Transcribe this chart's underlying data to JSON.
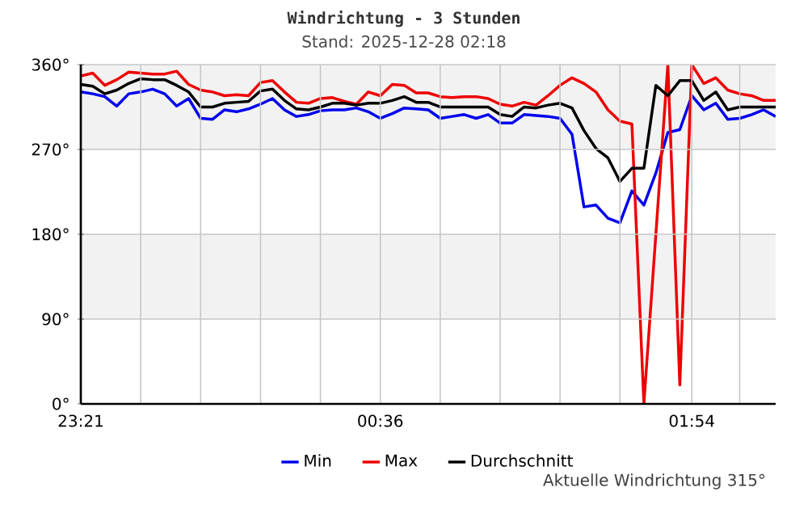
{
  "chart_data": {
    "type": "line",
    "title": "Windrichtung - 3 Stunden",
    "subtitle": "Stand: 2025-12-28 02:18",
    "annotations": [
      "Aktuelle Windrichtung 315°"
    ],
    "x": [
      "2025-12-27T23:21",
      "2025-12-27T23:24",
      "2025-12-27T23:27",
      "2025-12-27T23:30",
      "2025-12-27T23:33",
      "2025-12-27T23:36",
      "2025-12-27T23:39",
      "2025-12-27T23:42",
      "2025-12-27T23:45",
      "2025-12-27T23:48",
      "2025-12-27T23:51",
      "2025-12-27T23:54",
      "2025-12-27T23:57",
      "2025-12-28T00:00",
      "2025-12-28T00:03",
      "2025-12-28T00:06",
      "2025-12-28T00:09",
      "2025-12-28T00:12",
      "2025-12-28T00:15",
      "2025-12-28T00:18",
      "2025-12-28T00:21",
      "2025-12-28T00:24",
      "2025-12-28T00:27",
      "2025-12-28T00:30",
      "2025-12-28T00:33",
      "2025-12-28T00:36",
      "2025-12-28T00:39",
      "2025-12-28T00:42",
      "2025-12-28T00:45",
      "2025-12-28T00:48",
      "2025-12-28T00:51",
      "2025-12-28T00:54",
      "2025-12-28T00:57",
      "2025-12-28T01:00",
      "2025-12-28T01:03",
      "2025-12-28T01:06",
      "2025-12-28T01:09",
      "2025-12-28T01:12",
      "2025-12-28T01:15",
      "2025-12-28T01:18",
      "2025-12-28T01:21",
      "2025-12-28T01:24",
      "2025-12-28T01:27",
      "2025-12-28T01:30",
      "2025-12-28T01:33",
      "2025-12-28T01:36",
      "2025-12-28T01:39",
      "2025-12-28T01:42",
      "2025-12-28T01:45",
      "2025-12-28T01:48",
      "2025-12-28T01:51",
      "2025-12-28T01:54",
      "2025-12-28T01:57",
      "2025-12-28T02:00",
      "2025-12-28T02:03",
      "2025-12-28T02:06",
      "2025-12-28T02:09",
      "2025-12-28T02:12",
      "2025-12-28T02:15"
    ],
    "xlim": [
      "2025-12-27T23:21",
      "2025-12-28T02:15"
    ],
    "xticks": [
      {
        "value": "2025-12-27T23:21",
        "label": "23:21"
      },
      {
        "value": "2025-12-27T23:36",
        "label": null
      },
      {
        "value": "2025-12-27T23:51",
        "label": null
      },
      {
        "value": "2025-12-28T00:06",
        "label": null
      },
      {
        "value": "2025-12-28T00:21",
        "label": null
      },
      {
        "value": "2025-12-28T00:36",
        "label": "00:36"
      },
      {
        "value": "2025-12-28T00:51",
        "label": null
      },
      {
        "value": "2025-12-28T01:06",
        "label": null
      },
      {
        "value": "2025-12-28T01:21",
        "label": null
      },
      {
        "value": "2025-12-28T01:36",
        "label": null
      },
      {
        "value": "2025-12-28T01:54",
        "label": "01:54"
      },
      {
        "value": "2025-12-28T02:06",
        "label": null
      }
    ],
    "ylim": [
      0,
      360
    ],
    "yticks": [
      {
        "value": 0,
        "label": "0°"
      },
      {
        "value": 90,
        "label": "90°"
      },
      {
        "value": 180,
        "label": "180°"
      },
      {
        "value": 270,
        "label": "270°"
      },
      {
        "value": 360,
        "label": "360°"
      }
    ],
    "bands": [
      {
        "axis": "y",
        "from": 90,
        "to": 180,
        "color": "#f2f2f2"
      },
      {
        "axis": "y",
        "from": 270,
        "to": 360,
        "color": "#f2f2f2"
      }
    ],
    "grid": true,
    "legend": "bottom",
    "marker": "none",
    "line_style": "solid",
    "series": [
      {
        "name": "Min",
        "color": "#0000ee",
        "values": [
          331,
          329,
          326,
          316,
          329,
          331,
          334,
          329,
          316,
          324,
          303,
          302,
          312,
          310,
          313,
          318,
          324,
          312,
          305,
          307,
          311,
          312,
          312,
          314,
          310,
          303,
          308,
          314,
          313,
          312,
          303,
          305,
          307,
          303,
          307,
          298,
          298,
          307,
          306,
          305,
          303,
          286,
          209,
          211,
          197,
          192,
          226,
          211,
          245,
          288,
          291,
          327,
          312,
          319,
          302,
          303,
          307,
          312,
          305
        ]
      },
      {
        "name": "Max",
        "color": "#ee0000",
        "x": [
          "2025-12-27T23:21",
          "2025-12-27T23:24",
          "2025-12-27T23:27",
          "2025-12-27T23:30",
          "2025-12-27T23:33",
          "2025-12-27T23:36",
          "2025-12-27T23:39",
          "2025-12-27T23:42",
          "2025-12-27T23:45",
          "2025-12-27T23:48",
          "2025-12-27T23:51",
          "2025-12-27T23:54",
          "2025-12-27T23:57",
          "2025-12-28T00:00",
          "2025-12-28T00:03",
          "2025-12-28T00:06",
          "2025-12-28T00:09",
          "2025-12-28T00:12",
          "2025-12-28T00:15",
          "2025-12-28T00:18",
          "2025-12-28T00:21",
          "2025-12-28T00:24",
          "2025-12-28T00:27",
          "2025-12-28T00:30",
          "2025-12-28T00:33",
          "2025-12-28T00:36",
          "2025-12-28T00:39",
          "2025-12-28T00:42",
          "2025-12-28T00:45",
          "2025-12-28T00:48",
          "2025-12-28T00:51",
          "2025-12-28T00:54",
          "2025-12-28T00:57",
          "2025-12-28T01:00",
          "2025-12-28T01:03",
          "2025-12-28T01:06",
          "2025-12-28T01:09",
          "2025-12-28T01:12",
          "2025-12-28T01:15",
          "2025-12-28T01:18",
          "2025-12-28T01:21",
          "2025-12-28T01:24",
          "2025-12-28T01:27",
          "2025-12-28T01:30",
          "2025-12-28T01:33",
          "2025-12-28T01:36",
          "2025-12-28T01:39",
          "2025-12-28T01:42",
          "2025-12-28T01:48",
          "2025-12-28T01:51",
          "2025-12-28T01:54",
          "2025-12-28T01:57",
          "2025-12-28T02:00",
          "2025-12-28T02:03",
          "2025-12-28T02:06",
          "2025-12-28T02:09",
          "2025-12-28T02:12",
          "2025-12-28T02:15"
        ],
        "values": [
          348,
          351,
          338,
          344,
          352,
          351,
          350,
          350,
          353,
          339,
          333,
          331,
          327,
          328,
          327,
          341,
          343,
          331,
          320,
          319,
          324,
          325,
          321,
          318,
          331,
          327,
          339,
          338,
          330,
          330,
          326,
          325,
          326,
          326,
          324,
          318,
          316,
          320,
          317,
          327,
          338,
          346,
          340,
          331,
          312,
          300,
          297,
          0,
          360,
          20,
          360,
          340,
          346,
          333,
          329,
          327,
          322,
          322
        ]
      },
      {
        "name": "Durchschnitt",
        "color": "#000000",
        "values": [
          339,
          337,
          329,
          333,
          340,
          345,
          344,
          344,
          338,
          331,
          315,
          315,
          319,
          320,
          321,
          332,
          334,
          322,
          313,
          312,
          315,
          319,
          319,
          317,
          319,
          319,
          322,
          326,
          320,
          320,
          315,
          315,
          315,
          315,
          315,
          307,
          305,
          315,
          314,
          317,
          319,
          314,
          290,
          271,
          261,
          236,
          250,
          250,
          338,
          327,
          343,
          343,
          322,
          331,
          312,
          315,
          315,
          315,
          315
        ]
      }
    ]
  }
}
